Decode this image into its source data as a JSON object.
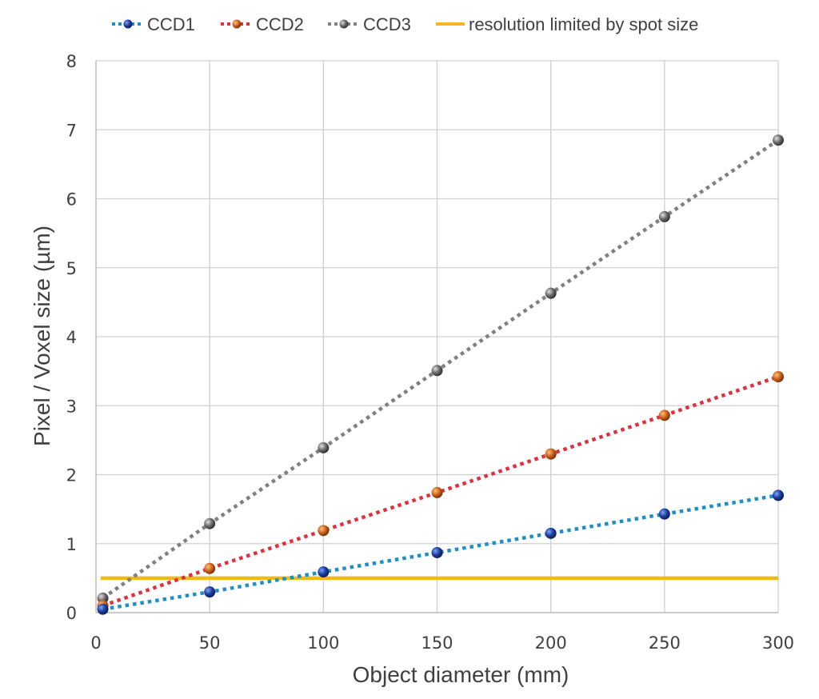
{
  "chart_data": {
    "type": "line",
    "title": "",
    "xlabel": "Object diameter (mm)",
    "ylabel": "Pixel / Voxel size (µm)",
    "xlim": [
      0,
      300
    ],
    "ylim": [
      0,
      8
    ],
    "xticks": [
      0,
      50,
      100,
      150,
      200,
      250,
      300
    ],
    "yticks": [
      0,
      1,
      2,
      3,
      4,
      5,
      6,
      7,
      8
    ],
    "xtick_labels": [
      "0",
      "50",
      "100",
      "150",
      "200",
      "250",
      "300"
    ],
    "ytick_labels": [
      "0",
      "1",
      "2",
      "3",
      "4",
      "5",
      "6",
      "7",
      "8"
    ],
    "grid": true,
    "legend_position": "top",
    "x": [
      3,
      50,
      100,
      150,
      200,
      250,
      300
    ],
    "series": [
      {
        "name": "CCD1",
        "line_color": "#1f8fc8",
        "marker_color": "#1f3f9f",
        "style": "dotted",
        "values": [
          0.05,
          0.3,
          0.59,
          0.87,
          1.15,
          1.43,
          1.7
        ]
      },
      {
        "name": "CCD2",
        "line_color": "#e0303f",
        "marker_color": "#d0651c",
        "style": "dotted",
        "values": [
          0.1,
          0.64,
          1.19,
          1.74,
          2.3,
          2.86,
          3.42
        ]
      },
      {
        "name": "CCD3",
        "line_color": "#808080",
        "marker_color": "#6e6e6e",
        "style": "dotted",
        "values": [
          0.21,
          1.29,
          2.39,
          3.51,
          4.63,
          5.74,
          6.85
        ]
      }
    ],
    "reference_line": {
      "name": "resolution limited by spot size",
      "color": "#f4b81c",
      "y": 0.5,
      "x_range": [
        2,
        300
      ]
    },
    "legend": [
      "CCD1",
      "CCD2",
      "CCD3",
      "resolution limited by spot size"
    ]
  }
}
